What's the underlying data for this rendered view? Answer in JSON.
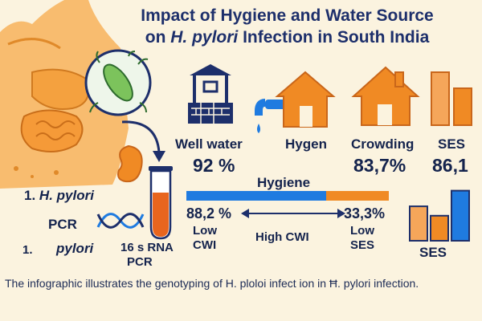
{
  "title": {
    "line1": "Impact of Hygiene and Water Source",
    "line2_prefix": "on ",
    "line2_italic": "H. pylori",
    "line2_suffix": " Infection in South India"
  },
  "factors": [
    {
      "label": "Well water",
      "value": "92 %",
      "icon": "well-icon"
    },
    {
      "label": "Hygen",
      "value": "",
      "icon": "faucet-icon"
    },
    {
      "label": "Crowding",
      "value": "83,7%",
      "icon": "house-icon"
    },
    {
      "label": "SES",
      "value": "86,1",
      "icon": "bar-chart-icon"
    }
  ],
  "hygiene": {
    "label": "Hygiene",
    "left_value": "88,2 %",
    "left_label_line1": "Low",
    "left_label_line2": "CWI",
    "middle_label": "High CWI",
    "right_value": "33,3%",
    "right_label_line1": "Low",
    "right_label_line2": "SES",
    "bar_blue_fraction": 0.69
  },
  "ses_chart": {
    "label": "SES",
    "bars": [
      0.55,
      0.4,
      0.8
    ]
  },
  "left_panel": {
    "item1_number": "1.",
    "item1_text": "H. pylori",
    "pcr": "PCR",
    "item2_number": "1.",
    "item2_text": "pylori",
    "rna_line1": "16 s RNA",
    "rna_line2": "PCR"
  },
  "caption": "The infographic illustrates the genotyping of H. ploloi infect ion in Ħ. pylori infection.",
  "colors": {
    "orange": "#f08a24",
    "blue": "#1f7be0",
    "navy": "#1d2f6b",
    "body": "#f7b25c",
    "green": "#5cb85c"
  }
}
